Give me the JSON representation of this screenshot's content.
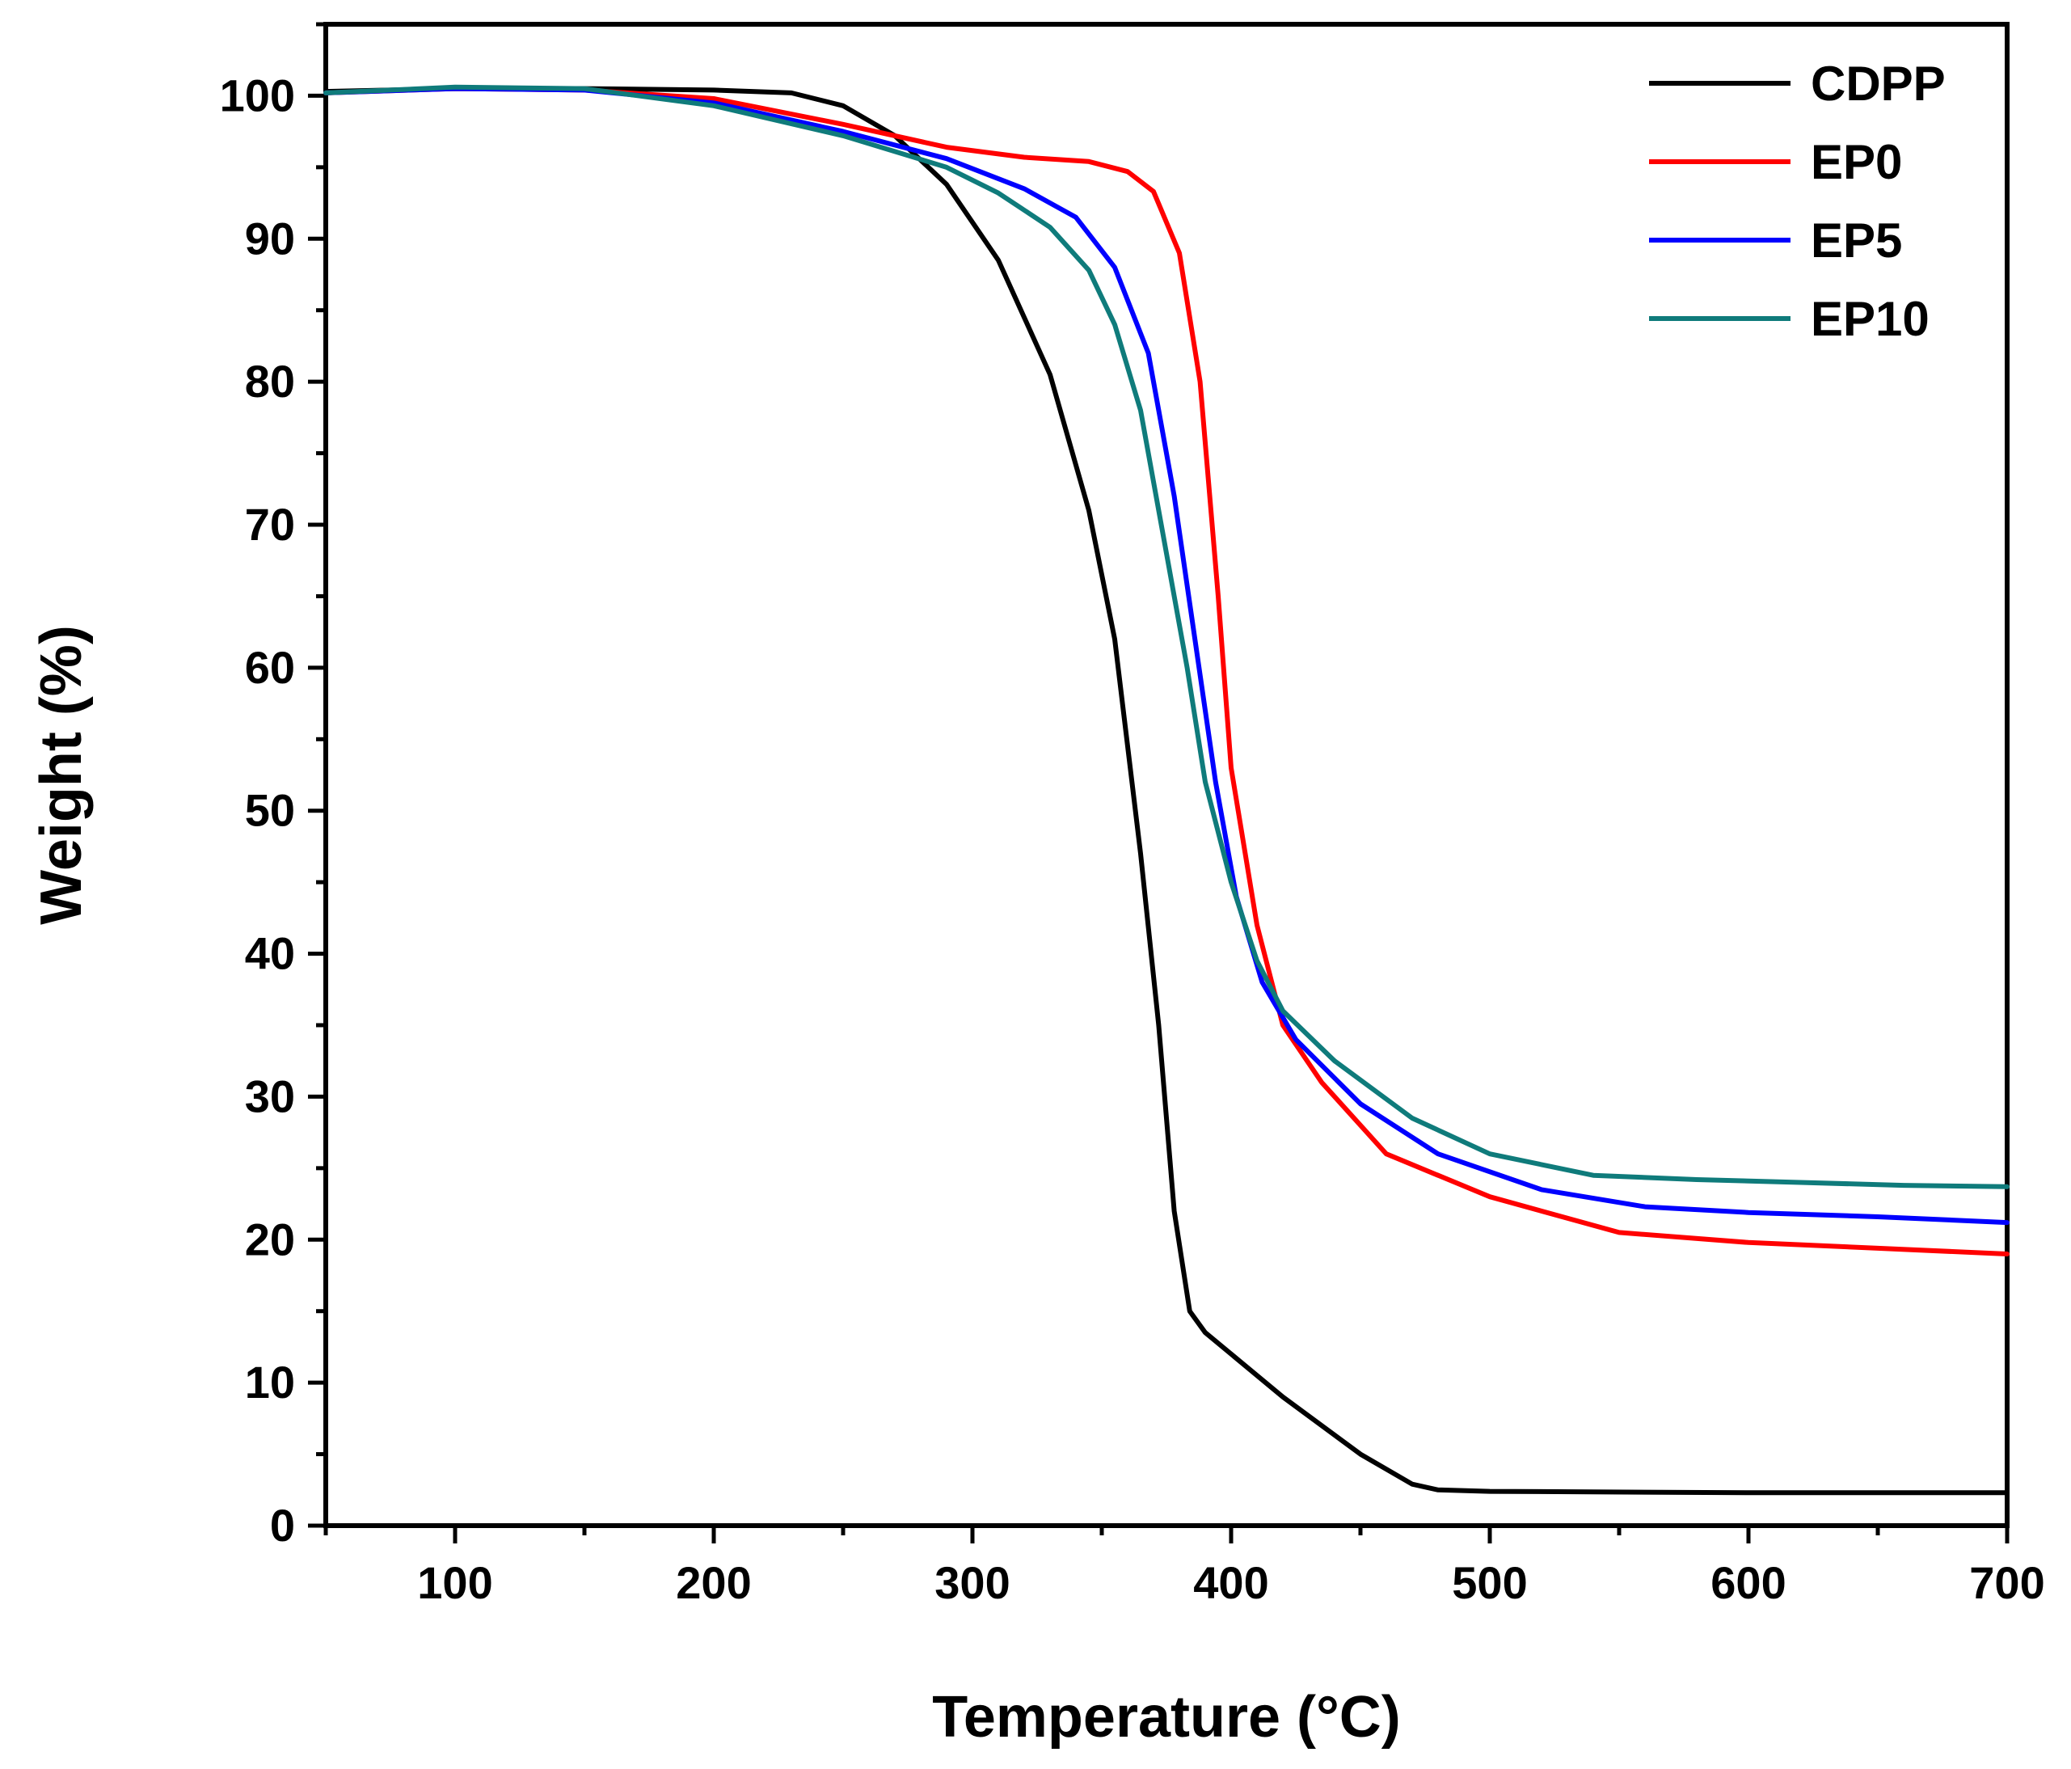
{
  "chart_data": {
    "type": "line",
    "title": "",
    "xlabel": "Temperature (°C)",
    "ylabel": "Weight (%)",
    "xlim": [
      50,
      700
    ],
    "ylim": [
      0,
      105
    ],
    "x_ticks": [
      100,
      200,
      300,
      400,
      500,
      600,
      700
    ],
    "y_ticks": [
      0,
      10,
      20,
      30,
      40,
      50,
      60,
      70,
      80,
      90,
      100
    ],
    "x_tick_labels": [
      "100",
      "200",
      "300",
      "400",
      "500",
      "600",
      "700"
    ],
    "y_tick_labels": [
      "0",
      "10",
      "20",
      "30",
      "40",
      "50",
      "60",
      "70",
      "80",
      "90",
      "100"
    ],
    "x_minor_step": 50,
    "y_minor_step": 5,
    "legend_position": "top-right",
    "grid": false,
    "series": [
      {
        "name": "CDPP",
        "color": "#000000",
        "points": [
          [
            50,
            100.3
          ],
          [
            100,
            100.5
          ],
          [
            150,
            100.5
          ],
          [
            200,
            100.4
          ],
          [
            230,
            100.2
          ],
          [
            250,
            99.3
          ],
          [
            270,
            97.2
          ],
          [
            290,
            93.8
          ],
          [
            310,
            88.5
          ],
          [
            330,
            80.5
          ],
          [
            345,
            71
          ],
          [
            355,
            62
          ],
          [
            365,
            47
          ],
          [
            372,
            35
          ],
          [
            378,
            22
          ],
          [
            384,
            15
          ],
          [
            390,
            13.5
          ],
          [
            420,
            9
          ],
          [
            450,
            5
          ],
          [
            470,
            2.9
          ],
          [
            480,
            2.5
          ],
          [
            500,
            2.4
          ],
          [
            600,
            2.3
          ],
          [
            700,
            2.3
          ]
        ]
      },
      {
        "name": "EP0",
        "color": "#ff0000",
        "points": [
          [
            50,
            100.2
          ],
          [
            100,
            100.5
          ],
          [
            150,
            100.4
          ],
          [
            200,
            99.8
          ],
          [
            250,
            98
          ],
          [
            290,
            96.4
          ],
          [
            320,
            95.7
          ],
          [
            345,
            95.4
          ],
          [
            360,
            94.7
          ],
          [
            370,
            93.3
          ],
          [
            380,
            89
          ],
          [
            388,
            80
          ],
          [
            395,
            65
          ],
          [
            400,
            53
          ],
          [
            410,
            42
          ],
          [
            420,
            35
          ],
          [
            435,
            31
          ],
          [
            460,
            26
          ],
          [
            500,
            23
          ],
          [
            550,
            20.5
          ],
          [
            600,
            19.8
          ],
          [
            650,
            19.4
          ],
          [
            700,
            19
          ]
        ]
      },
      {
        "name": "EP5",
        "color": "#0000ff",
        "points": [
          [
            50,
            100.2
          ],
          [
            100,
            100.5
          ],
          [
            150,
            100.4
          ],
          [
            200,
            99.5
          ],
          [
            250,
            97.5
          ],
          [
            290,
            95.6
          ],
          [
            320,
            93.5
          ],
          [
            340,
            91.5
          ],
          [
            355,
            88
          ],
          [
            368,
            82
          ],
          [
            378,
            72
          ],
          [
            386,
            62
          ],
          [
            394,
            52
          ],
          [
            402,
            44
          ],
          [
            412,
            38
          ],
          [
            425,
            34
          ],
          [
            450,
            29.5
          ],
          [
            480,
            26
          ],
          [
            520,
            23.5
          ],
          [
            560,
            22.3
          ],
          [
            600,
            21.9
          ],
          [
            650,
            21.6
          ],
          [
            700,
            21.2
          ]
        ]
      },
      {
        "name": "EP10",
        "color": "#0f7b7b",
        "points": [
          [
            50,
            100.2
          ],
          [
            100,
            100.6
          ],
          [
            150,
            100.5
          ],
          [
            200,
            99.3
          ],
          [
            250,
            97.2
          ],
          [
            290,
            95
          ],
          [
            310,
            93.2
          ],
          [
            330,
            90.8
          ],
          [
            345,
            87.8
          ],
          [
            355,
            84
          ],
          [
            365,
            78
          ],
          [
            375,
            68
          ],
          [
            383,
            60
          ],
          [
            390,
            52
          ],
          [
            400,
            45
          ],
          [
            410,
            39.5
          ],
          [
            420,
            36
          ],
          [
            440,
            32.5
          ],
          [
            470,
            28.5
          ],
          [
            500,
            26
          ],
          [
            540,
            24.5
          ],
          [
            580,
            24.2
          ],
          [
            620,
            24
          ],
          [
            660,
            23.8
          ],
          [
            700,
            23.7
          ]
        ]
      }
    ]
  }
}
